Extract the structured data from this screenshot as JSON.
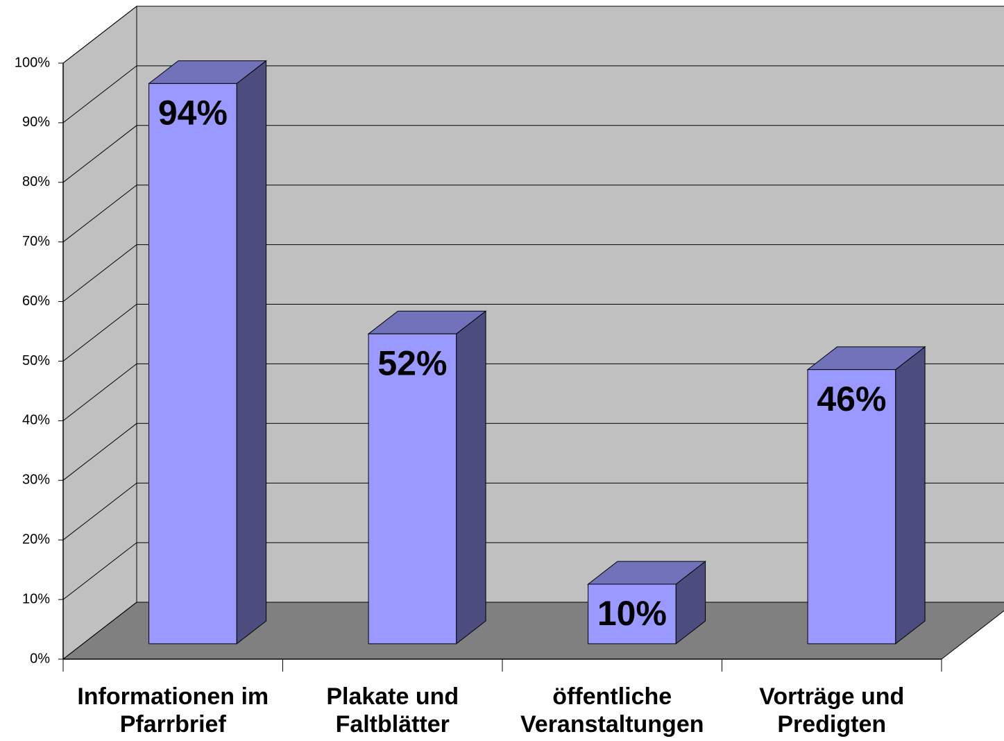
{
  "chart_data": {
    "type": "bar3d",
    "categories": [
      "Informationen im Pfarrbrief",
      "Plakate und Faltblätter",
      "öffentliche Veranstaltungen",
      "Vorträge und Predigten"
    ],
    "values": [
      94,
      52,
      10,
      46
    ],
    "value_labels": [
      "94%",
      "52%",
      "10%",
      "46%"
    ],
    "color": "#9999ff",
    "ylim": [
      0,
      100
    ],
    "yticks": [
      {
        "value": 0,
        "label": "0%"
      },
      {
        "value": 10,
        "label": "10%"
      },
      {
        "value": 20,
        "label": "20%"
      },
      {
        "value": 30,
        "label": "30%"
      },
      {
        "value": 40,
        "label": "40%"
      },
      {
        "value": 50,
        "label": "50%"
      },
      {
        "value": 60,
        "label": "60%"
      },
      {
        "value": 70,
        "label": "70%"
      },
      {
        "value": 80,
        "label": "80%"
      },
      {
        "value": 90,
        "label": "90%"
      },
      {
        "value": 100,
        "label": "100%"
      }
    ],
    "grid": true
  }
}
